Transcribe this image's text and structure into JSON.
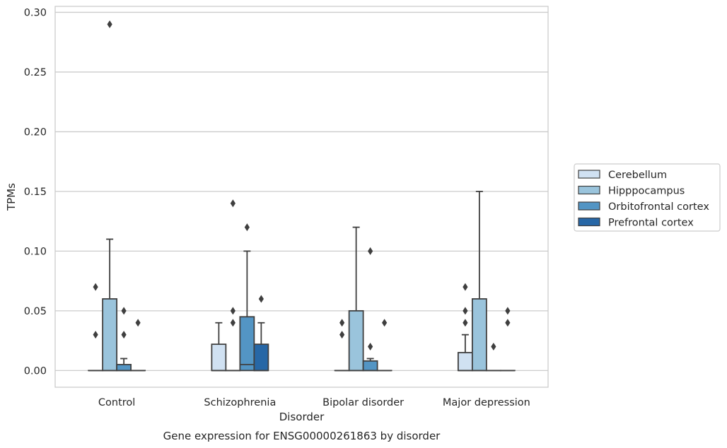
{
  "chart_data": {
    "type": "box",
    "caption": "Gene expression for ENSG00000261863 by disorder",
    "xlabel": "Disorder",
    "ylabel": "TPMs",
    "ylim": [
      -0.014,
      0.305
    ],
    "yticks": [
      0.0,
      0.05,
      0.1,
      0.15,
      0.2,
      0.25,
      0.3
    ],
    "ytick_labels": [
      "0.00",
      "0.05",
      "0.10",
      "0.15",
      "0.20",
      "0.25",
      "0.30"
    ],
    "grid": "horizontal",
    "legend_position": "right",
    "categories": [
      "Control",
      "Schizophrenia",
      "Bipolar disorder",
      "Major depression"
    ],
    "series": [
      {
        "name": "Cerebellum",
        "color": "#d0e1f2",
        "boxes": [
          {
            "q1": 0,
            "median": 0,
            "q3": 0,
            "whislo": 0,
            "whishi": 0,
            "fliers": [
              0.03,
              0.07
            ]
          },
          {
            "q1": 0,
            "median": 0,
            "q3": 0.022,
            "whislo": 0,
            "whishi": 0.04,
            "fliers": []
          },
          {
            "q1": 0,
            "median": 0,
            "q3": 0,
            "whislo": 0,
            "whishi": 0,
            "fliers": [
              0.03,
              0.04
            ]
          },
          {
            "q1": 0,
            "median": 0,
            "q3": 0.015,
            "whislo": 0,
            "whishi": 0.03,
            "fliers": [
              0.04,
              0.05,
              0.07
            ]
          }
        ]
      },
      {
        "name": "Hipppocampus",
        "color": "#9ac4dc",
        "boxes": [
          {
            "q1": 0,
            "median": 0,
            "q3": 0.06,
            "whislo": 0,
            "whishi": 0.11,
            "fliers": [
              0.29
            ]
          },
          {
            "q1": 0,
            "median": 0,
            "q3": 0,
            "whislo": 0,
            "whishi": 0,
            "fliers": [
              0.04,
              0.05,
              0.14
            ]
          },
          {
            "q1": 0,
            "median": 0,
            "q3": 0.05,
            "whislo": 0,
            "whishi": 0.12,
            "fliers": []
          },
          {
            "q1": 0,
            "median": 0,
            "q3": 0.06,
            "whislo": 0,
            "whishi": 0.15,
            "fliers": []
          }
        ]
      },
      {
        "name": "Orbitofrontal cortex",
        "color": "#5395c4",
        "boxes": [
          {
            "q1": 0,
            "median": 0,
            "q3": 0.005,
            "whislo": 0,
            "whishi": 0.01,
            "fliers": [
              0.03,
              0.05
            ]
          },
          {
            "q1": 0,
            "median": 0.005,
            "q3": 0.045,
            "whislo": 0,
            "whishi": 0.1,
            "fliers": [
              0.12
            ]
          },
          {
            "q1": 0,
            "median": 0,
            "q3": 0.008,
            "whislo": 0,
            "whishi": 0.01,
            "fliers": [
              0.02,
              0.1
            ]
          },
          {
            "q1": 0,
            "median": 0,
            "q3": 0,
            "whislo": 0,
            "whishi": 0,
            "fliers": [
              0.02
            ]
          }
        ]
      },
      {
        "name": "Prefrontal cortex",
        "color": "#2767a6",
        "boxes": [
          {
            "q1": 0,
            "median": 0,
            "q3": 0,
            "whislo": 0,
            "whishi": 0,
            "fliers": [
              0.04
            ]
          },
          {
            "q1": 0,
            "median": 0,
            "q3": 0.022,
            "whislo": 0,
            "whishi": 0.04,
            "fliers": [
              0.06
            ]
          },
          {
            "q1": 0,
            "median": 0,
            "q3": 0,
            "whislo": 0,
            "whishi": 0,
            "fliers": [
              0.04
            ]
          },
          {
            "q1": 0,
            "median": 0,
            "q3": 0,
            "whislo": 0,
            "whishi": 0,
            "fliers": [
              0.04,
              0.05
            ]
          }
        ]
      }
    ]
  }
}
